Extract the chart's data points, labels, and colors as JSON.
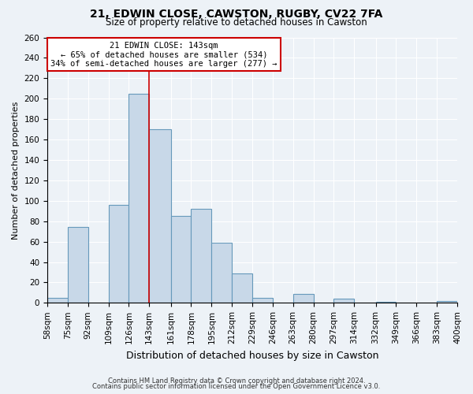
{
  "title": "21, EDWIN CLOSE, CAWSTON, RUGBY, CV22 7FA",
  "subtitle": "Size of property relative to detached houses in Cawston",
  "xlabel": "Distribution of detached houses by size in Cawston",
  "ylabel": "Number of detached properties",
  "footnote1": "Contains HM Land Registry data © Crown copyright and database right 2024.",
  "footnote2": "Contains public sector information licensed under the Open Government Licence v3.0.",
  "bin_labels": [
    "58sqm",
    "75sqm",
    "92sqm",
    "109sqm",
    "126sqm",
    "143sqm",
    "161sqm",
    "178sqm",
    "195sqm",
    "212sqm",
    "229sqm",
    "246sqm",
    "263sqm",
    "280sqm",
    "297sqm",
    "314sqm",
    "332sqm",
    "349sqm",
    "366sqm",
    "383sqm",
    "400sqm"
  ],
  "bin_edges": [
    58,
    75,
    92,
    109,
    126,
    143,
    161,
    178,
    195,
    212,
    229,
    246,
    263,
    280,
    297,
    314,
    332,
    349,
    366,
    383,
    400
  ],
  "bar_heights": [
    5,
    74,
    0,
    96,
    205,
    170,
    85,
    92,
    59,
    29,
    5,
    0,
    9,
    0,
    4,
    0,
    1,
    0,
    0,
    0,
    2
  ],
  "bar_color": "#c8d8e8",
  "bar_edge_color": "#6699bb",
  "vline_x": 143,
  "vline_color": "#cc0000",
  "ylim": [
    0,
    260
  ],
  "yticks": [
    0,
    20,
    40,
    60,
    80,
    100,
    120,
    140,
    160,
    180,
    200,
    220,
    240,
    260
  ],
  "annotation_title": "21 EDWIN CLOSE: 143sqm",
  "annotation_line1": "← 65% of detached houses are smaller (534)",
  "annotation_line2": "34% of semi-detached houses are larger (277) →",
  "annotation_box_color": "#ffffff",
  "annotation_box_edge": "#cc0000",
  "bg_color": "#edf2f7",
  "grid_color": "#ffffff",
  "title_fontsize": 10,
  "subtitle_fontsize": 8.5,
  "xlabel_fontsize": 9,
  "ylabel_fontsize": 8,
  "tick_label_fontsize": 7.5,
  "annotation_fontsize": 7.5,
  "footnote_fontsize": 6
}
